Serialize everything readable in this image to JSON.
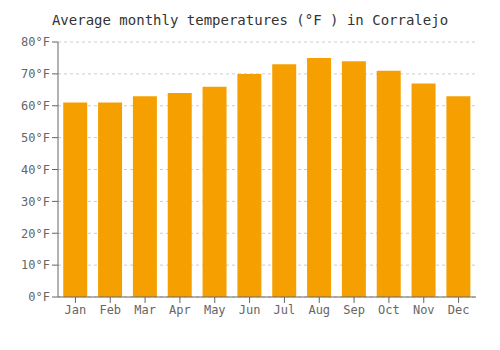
{
  "chart_data": {
    "type": "bar",
    "title": "Average monthly temperatures (°F ) in Corralejo",
    "categories": [
      "Jan",
      "Feb",
      "Mar",
      "Apr",
      "May",
      "Jun",
      "Jul",
      "Aug",
      "Sep",
      "Oct",
      "Nov",
      "Dec"
    ],
    "values": [
      61,
      61,
      63,
      64,
      66,
      70,
      73,
      75,
      74,
      71,
      67,
      63
    ],
    "color": "#F5A000",
    "ylim": [
      0,
      80
    ],
    "yticks": [
      {
        "value": 0,
        "label": "0°F"
      },
      {
        "value": 10,
        "label": "10°F"
      },
      {
        "value": 20,
        "label": "20°F"
      },
      {
        "value": 30,
        "label": "30°F"
      },
      {
        "value": 40,
        "label": "40°F"
      },
      {
        "value": 50,
        "label": "50°F"
      },
      {
        "value": 60,
        "label": "60°F"
      },
      {
        "value": 70,
        "label": "70°F"
      },
      {
        "value": 80,
        "label": "80°F"
      }
    ],
    "grid": true
  }
}
